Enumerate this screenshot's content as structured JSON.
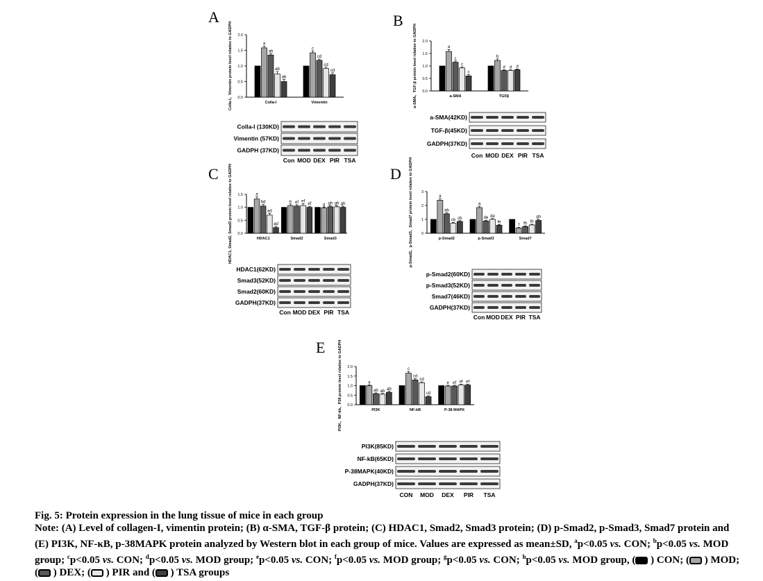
{
  "palette": [
    "#000000",
    "#a6a6a6",
    "#595959",
    "#e6e6e6",
    "#3f3f3f"
  ],
  "blot_bg": "#f2f2f2",
  "panels": [
    {
      "letter": "A",
      "chart_data": {
        "type": "bar",
        "title": "",
        "ylabel": "Colla-I、Vimentin protein level relative to GADPH",
        "ylim": [
          0,
          2.0
        ],
        "yticks": [
          "0.0",
          "0.5",
          "1.0",
          "1.5",
          "2.0"
        ],
        "grid": false,
        "categories": [
          "Colla-I",
          "Vimentin"
        ],
        "series": [
          {
            "name": "CON",
            "values": [
              1.0,
              1.0
            ],
            "err": [
              0,
              0
            ],
            "labels": [
              "",
              ""
            ]
          },
          {
            "name": "MOD",
            "values": [
              1.58,
              1.42
            ],
            "err": [
              0.06,
              0.06
            ],
            "labels": [
              "a",
              "c"
            ]
          },
          {
            "name": "DEX",
            "values": [
              1.35,
              1.18
            ],
            "err": [
              0.04,
              0.04
            ],
            "labels": [
              "ab",
              "cd"
            ]
          },
          {
            "name": "PIR",
            "values": [
              0.74,
              0.92
            ],
            "err": [
              0.08,
              0.04
            ],
            "labels": [
              "ab",
              "cd"
            ]
          },
          {
            "name": "TSA",
            "values": [
              0.5,
              0.72
            ],
            "err": [
              0.07,
              0.06
            ],
            "labels": [
              "ab",
              "cd"
            ]
          }
        ]
      },
      "blot": {
        "rows": [
          "Colla-I  (130KD)",
          "Vimentin  (57KD)",
          "GADPH  (37KD)"
        ],
        "lanes": [
          "Con",
          "MOD",
          "DEX",
          "PIR",
          "TSA"
        ]
      }
    },
    {
      "letter": "B",
      "chart_data": {
        "type": "bar",
        "title": "",
        "ylabel": "a-SMA、TGF-β protein level relative to GADPH",
        "ylim": [
          0,
          2.0
        ],
        "yticks": [
          "0.0",
          "0.5",
          "1.0",
          "1.5",
          "2.0"
        ],
        "grid": false,
        "categories": [
          "a-SMA",
          "TGFβ"
        ],
        "series": [
          {
            "name": "CON",
            "values": [
              1.0,
              1.0
            ],
            "err": [
              0,
              0
            ],
            "labels": [
              "",
              ""
            ]
          },
          {
            "name": "MOD",
            "values": [
              1.58,
              1.22
            ],
            "err": [
              0.08,
              0.06
            ],
            "labels": [
              "a",
              "b"
            ]
          },
          {
            "name": "DEX",
            "values": [
              1.15,
              0.82
            ],
            "err": [
              0.05,
              0.03
            ],
            "labels": [
              "c",
              "d"
            ]
          },
          {
            "name": "PIR",
            "values": [
              0.92,
              0.82
            ],
            "err": [
              0.04,
              0.03
            ],
            "labels": [
              "c",
              "d"
            ]
          },
          {
            "name": "TSA",
            "values": [
              0.6,
              0.85
            ],
            "err": [
              0.05,
              0.03
            ],
            "labels": [
              "c",
              "d"
            ]
          }
        ]
      },
      "blot": {
        "rows": [
          "a-SMA(42KD)",
          "TGF-β(45KD)",
          "GADPH(37KD)"
        ],
        "lanes": [
          "Con",
          "MOD",
          "DEX",
          "PIR",
          "TSA"
        ]
      }
    },
    {
      "letter": "C",
      "chart_data": {
        "type": "bar",
        "title": "",
        "ylabel": "HDAC1, Smad2, Smad3 protein level relative to GADPH",
        "ylim": [
          0,
          1.5
        ],
        "yticks": [
          "0.0",
          "0.5",
          "1.0",
          "1.5"
        ],
        "grid": false,
        "categories": [
          "HDAC1",
          "Smad2",
          "Smad3"
        ],
        "series": [
          {
            "name": "CON",
            "values": [
              1.0,
              1.0,
              1.0
            ],
            "err": [
              0,
              0,
              0
            ],
            "labels": [
              "",
              "",
              ""
            ]
          },
          {
            "name": "MOD",
            "values": [
              1.32,
              1.07,
              0.98
            ],
            "err": [
              0.08,
              0.06,
              0.03
            ],
            "labels": [
              "a",
              "e",
              "g"
            ]
          },
          {
            "name": "DEX",
            "values": [
              1.05,
              1.05,
              1.02
            ],
            "err": [
              0.06,
              0.05,
              0.04
            ],
            "labels": [
              "bd",
              "ef",
              "gh"
            ]
          },
          {
            "name": "PIR",
            "values": [
              0.7,
              1.07,
              1.02
            ],
            "err": [
              0.07,
              0.07,
              0.04
            ],
            "labels": [
              "ad",
              "ef",
              "gh"
            ]
          },
          {
            "name": "TSA",
            "values": [
              0.22,
              1.0,
              1.0
            ],
            "err": [
              0.05,
              0.04,
              0.04
            ],
            "labels": [
              "ad",
              "ef",
              "gh"
            ]
          }
        ]
      },
      "blot": {
        "rows": [
          "HDAC1(62KD)",
          "Smad3(52KD)",
          "Smad2(60KD)",
          "GADPH(37KD)"
        ],
        "lanes": [
          "Con",
          "MOD",
          "DEX",
          "PIR",
          "TSA"
        ]
      }
    },
    {
      "letter": "D",
      "chart_data": {
        "type": "bar",
        "title": "",
        "ylabel": "p-Smad2、p-Smad3、Smad7 protein level relative to GADPH",
        "ylim": [
          0,
          3
        ],
        "yticks": [
          "0",
          "1",
          "2",
          "3"
        ],
        "grid": false,
        "categories": [
          "p-Smad2",
          "p-Smad3",
          "Smad7"
        ],
        "series": [
          {
            "name": "CON",
            "values": [
              1.0,
              1.0,
              1.0
            ],
            "err": [
              0,
              0,
              0
            ],
            "labels": [
              "",
              "",
              ""
            ]
          },
          {
            "name": "MOD",
            "values": [
              2.38,
              1.85,
              0.38
            ],
            "err": [
              0.12,
              0.1,
              0.04
            ],
            "labels": [
              "a",
              "a",
              "f"
            ]
          },
          {
            "name": "DEX",
            "values": [
              1.4,
              0.88,
              0.48
            ],
            "err": [
              0.07,
              0.06,
              0.05
            ],
            "labels": [
              "ab",
              "de",
              "fh"
            ]
          },
          {
            "name": "PIR",
            "values": [
              0.72,
              1.0,
              0.6
            ],
            "err": [
              0.06,
              0.06,
              0.05
            ],
            "labels": [
              "cb",
              "de",
              "fh"
            ]
          },
          {
            "name": "TSA",
            "values": [
              0.85,
              0.58,
              0.92
            ],
            "err": [
              0.06,
              0.05,
              0.07
            ],
            "labels": [
              "cb",
              "fe",
              "gh"
            ]
          }
        ]
      },
      "blot": {
        "rows": [
          "p-Smad2(60KD)",
          "p-Smad3(52KD)",
          "Smad7(46KD)",
          "GADPH(37KD)"
        ],
        "lanes": [
          "Con",
          "MOD",
          "DEX",
          "PIR",
          "TSA"
        ]
      }
    },
    {
      "letter": "E",
      "chart_data": {
        "type": "bar",
        "title": "",
        "ylabel": "PI3K、NF-kb、P38 protein level relative to GADPH",
        "ylim": [
          0,
          2.0
        ],
        "yticks": [
          "0.0",
          "0.5",
          "1.0",
          "1.5",
          "2.0"
        ],
        "grid": false,
        "categories": [
          "PI3K",
          "NF-kB",
          "P-38 MAPK"
        ],
        "series": [
          {
            "name": "CON",
            "values": [
              1.0,
              1.0,
              1.0
            ],
            "err": [
              0,
              0,
              0
            ],
            "labels": [
              "",
              "",
              ""
            ]
          },
          {
            "name": "MOD",
            "values": [
              1.0,
              1.65,
              0.98
            ],
            "err": [
              0.04,
              0.09,
              0.04
            ],
            "labels": [
              "a",
              "c",
              "e"
            ]
          },
          {
            "name": "DEX",
            "values": [
              0.58,
              1.3,
              0.98
            ],
            "err": [
              0.04,
              0.06,
              0.04
            ],
            "labels": [
              "ab",
              "cd",
              "ef"
            ]
          },
          {
            "name": "PIR",
            "values": [
              0.55,
              1.15,
              1.03
            ],
            "err": [
              0.04,
              0.05,
              0.04
            ],
            "labels": [
              "ab",
              "cd",
              "ef"
            ]
          },
          {
            "name": "TSA",
            "values": [
              0.65,
              0.42,
              1.03
            ],
            "err": [
              0.05,
              0.05,
              0.04
            ],
            "labels": [
              "ab",
              "cd",
              "ef"
            ]
          }
        ]
      },
      "blot": {
        "rows": [
          "PI3K(85KD)",
          "NF-kB(65KD)",
          "P-38MAPK(40KD)",
          "GADPH(37KD)"
        ],
        "lanes": [
          "CON",
          "MOD",
          "DEX",
          "PIR",
          "TSA"
        ]
      }
    }
  ],
  "caption": {
    "title": "Fig. 5: Protein expression in the lung tissue of mice in each group",
    "note_lead": "Note: (A) Level of collagen-I, vimentin protein; (B) α-SMA, TGF-β protein; (C) HDAC1, Smad2, Smad3 protein; (D) p-Smad2, p-Smad3, Smad7 protein and (E) PI3K, NF-κB, p-38MAPK protein analyzed by Western blot in each group of mice. Values are expressed as mean±SD, ",
    "sig": [
      {
        "sup": "a",
        "text": "p<0.05 ",
        "vs": "vs.",
        "ref": " CON; "
      },
      {
        "sup": "b",
        "text": "p<0.05 ",
        "vs": "vs.",
        "ref": " MOD group; "
      },
      {
        "sup": "c",
        "text": "p<0.05 ",
        "vs": "vs.",
        "ref": " CON; "
      },
      {
        "sup": "d",
        "text": "p<0.05 ",
        "vs": "vs.",
        "ref": " MOD group; "
      },
      {
        "sup": "e",
        "text": "p<0.05 ",
        "vs": "vs.",
        "ref": " CON; "
      },
      {
        "sup": "f",
        "text": "p<0.05 ",
        "vs": "vs.",
        "ref": " MOD group; "
      },
      {
        "sup": "g",
        "text": "p<0.05 ",
        "vs": "vs.",
        "ref": " CON; "
      },
      {
        "sup": "h",
        "text": "p<0.05 ",
        "vs": "vs.",
        "ref": " MOD group, "
      }
    ],
    "legend": [
      {
        "label": " ) CON; ("
      },
      {
        "label": " ) MOD; ("
      },
      {
        "label": " ) DEX; ("
      },
      {
        "label": " ) PIR and ("
      },
      {
        "label": " ) TSA groups"
      }
    ]
  }
}
